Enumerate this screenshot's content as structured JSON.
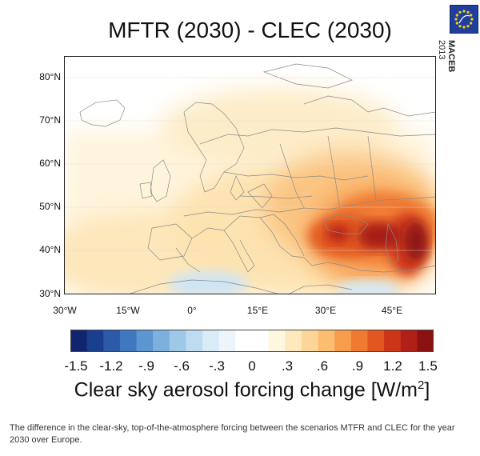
{
  "title": "MFTR (2030) - CLEC (2030)",
  "logo": {
    "name": "MACEB",
    "year": "2013"
  },
  "map": {
    "lat_labels": [
      "80°N",
      "70°N",
      "60°N",
      "50°N",
      "40°N",
      "30°N"
    ],
    "lon_labels": [
      "30°W",
      "15°W",
      "0°",
      "15°E",
      "30°E",
      "45°E"
    ]
  },
  "colorbar": {
    "ticks": [
      "-1.5",
      "-1.2",
      "-.9",
      "-.6",
      "-.3",
      "0",
      ".3",
      ".6",
      ".9",
      "1.2",
      "1.5"
    ],
    "colors": [
      "#10256e",
      "#1a3f8e",
      "#2b5aa8",
      "#3f78bf",
      "#5c95d0",
      "#7db0de",
      "#9ec8e8",
      "#bddbf1",
      "#d8ebf7",
      "#ecf5fb",
      "#ffffff",
      "#ffffff",
      "#fff6df",
      "#fde9bd",
      "#fcd598",
      "#fbbd70",
      "#f89d4c",
      "#f07a30",
      "#e2561f",
      "#cc3518",
      "#b01f18",
      "#8c1212"
    ],
    "label": "Clear sky aerosol forcing change [W/m",
    "label_sup": "2",
    "label_end": "]"
  },
  "caption": "The difference in the clear-sky, top-of-the-atmosphere forcing between the scenarios MTFR and CLEC for the year 2030 over Europe."
}
